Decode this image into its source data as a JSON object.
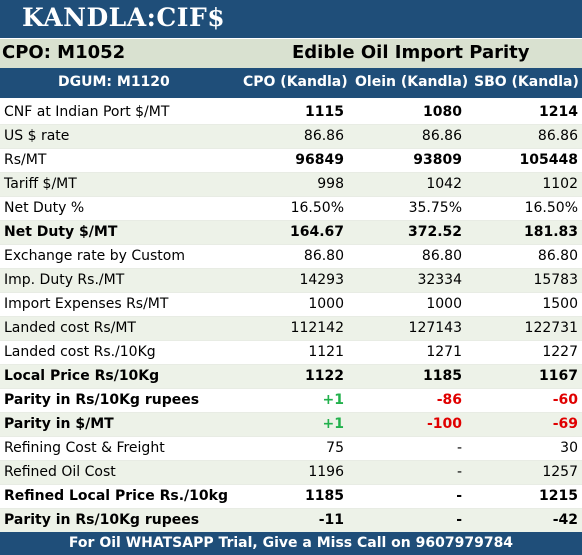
{
  "banner": {
    "title": "KANDLA:CIF$"
  },
  "subheader": {
    "left": "CPO: M1052",
    "right": "Edible Oil Import Parity"
  },
  "columns": {
    "label": "DGUM: M1120",
    "c1": "CPO (Kandla)",
    "c2": "Olein (Kandla)",
    "c3": "SBO (Kandla)"
  },
  "rows": [
    {
      "label": "CNF at Indian Port $/MT",
      "c1": "1115",
      "c2": "1080",
      "c3": "1214"
    },
    {
      "label": "US $ rate",
      "c1": "86.86",
      "c2": "86.86",
      "c3": "86.86"
    },
    {
      "label": "Rs/MT",
      "c1": "96849",
      "c2": "93809",
      "c3": "105448"
    },
    {
      "label": "Tariff $/MT",
      "c1": "998",
      "c2": "1042",
      "c3": "1102"
    },
    {
      "label": "Net Duty %",
      "c1": "16.50%",
      "c2": "35.75%",
      "c3": "16.50%"
    },
    {
      "label": "Net Duty $/MT",
      "c1": "164.67",
      "c2": "372.52",
      "c3": "181.83"
    },
    {
      "label": "Exchange rate by Custom",
      "c1": "86.80",
      "c2": "86.80",
      "c3": "86.80"
    },
    {
      "label": "Imp. Duty Rs./MT",
      "c1": "14293",
      "c2": "32334",
      "c3": "15783"
    },
    {
      "label": "Import Expenses Rs/MT",
      "c1": "1000",
      "c2": "1000",
      "c3": "1500"
    },
    {
      "label": "Landed cost Rs/MT",
      "c1": "112142",
      "c2": "127143",
      "c3": "122731"
    },
    {
      "label": "Landed cost Rs./10Kg",
      "c1": "1121",
      "c2": "1271",
      "c3": "1227"
    },
    {
      "label": "Local Price Rs/10Kg",
      "c1": "1122",
      "c2": "1185",
      "c3": "1167"
    },
    {
      "label": "Parity in Rs/10Kg rupees",
      "c1": "+1",
      "c2": "-86",
      "c3": "-60"
    },
    {
      "label": "Parity in $/MT",
      "c1": "+1",
      "c2": "-100",
      "c3": "-69"
    },
    {
      "label": "Refining Cost & Freight",
      "c1": "75",
      "c2": "-",
      "c3": "30"
    },
    {
      "label": "Refined Oil Cost",
      "c1": "1196",
      "c2": "-",
      "c3": "1257"
    },
    {
      "label": "Refined Local Price Rs./10kg",
      "c1": "1185",
      "c2": "-",
      "c3": "1215"
    },
    {
      "label": "Parity in Rs/10Kg rupees",
      "c1": "-11",
      "c2": "-",
      "c3": "-42"
    }
  ],
  "footer": {
    "text": "For Oil WHATSAPP Trial, Give a Miss Call on 9607979784"
  },
  "colors": {
    "banner_bg": "#1f4e79",
    "subheader_bg": "#d9e1d0",
    "stripe_bg": "#edf2e8",
    "positive": "#22b14c",
    "negative": "#e00000"
  }
}
